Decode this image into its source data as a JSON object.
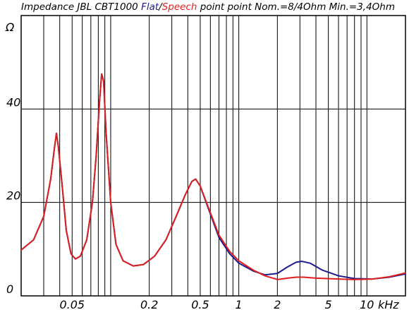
{
  "chart_data": {
    "type": "line",
    "title_parts": [
      {
        "text": "Impedance JBL CBT1000 ",
        "color": "#000000"
      },
      {
        "text": "Flat",
        "color": "#1c1c8c"
      },
      {
        "text": "/",
        "color": "#000000"
      },
      {
        "text": "Speech",
        "color": "#e01e1e"
      },
      {
        "text": " point point Nom.=8/4Ohm Min.=3,4Ohm",
        "color": "#000000"
      }
    ],
    "ylabel": "Ω",
    "xunit": "kHz",
    "x_scale": "log",
    "xlim": [
      0.02,
      20
    ],
    "ylim": [
      0,
      60
    ],
    "grid": true,
    "y_ticks": [
      {
        "value": 0,
        "label": "0"
      },
      {
        "value": 20,
        "label": "20"
      },
      {
        "value": 40,
        "label": "40"
      }
    ],
    "x_ticks": [
      {
        "value": 0.05,
        "label": "0.05"
      },
      {
        "value": 0.2,
        "label": "0.2"
      },
      {
        "value": 0.5,
        "label": "0.5"
      },
      {
        "value": 1,
        "label": "1"
      },
      {
        "value": 2,
        "label": "2"
      },
      {
        "value": 5,
        "label": "5"
      },
      {
        "value": 10,
        "label": "10"
      }
    ],
    "series": [
      {
        "name": "Flat",
        "color": "#1c1c8c",
        "points": [
          [
            0.02,
            9.8
          ],
          [
            0.025,
            12.0
          ],
          [
            0.03,
            17.0
          ],
          [
            0.034,
            25.0
          ],
          [
            0.0365,
            32.0
          ],
          [
            0.0377,
            34.8
          ],
          [
            0.039,
            32.0
          ],
          [
            0.042,
            23.0
          ],
          [
            0.045,
            14.0
          ],
          [
            0.049,
            9.0
          ],
          [
            0.053,
            7.9
          ],
          [
            0.058,
            8.5
          ],
          [
            0.065,
            12.0
          ],
          [
            0.072,
            20.0
          ],
          [
            0.077,
            30.0
          ],
          [
            0.082,
            42.0
          ],
          [
            0.085,
            47.5
          ],
          [
            0.088,
            46.0
          ],
          [
            0.092,
            35.0
          ],
          [
            0.1,
            20.0
          ],
          [
            0.11,
            11.0
          ],
          [
            0.125,
            7.5
          ],
          [
            0.15,
            6.4
          ],
          [
            0.18,
            6.7
          ],
          [
            0.22,
            8.5
          ],
          [
            0.27,
            12.0
          ],
          [
            0.33,
            17.5
          ],
          [
            0.38,
            21.5
          ],
          [
            0.43,
            24.5
          ],
          [
            0.46,
            25.0
          ],
          [
            0.5,
            23.5
          ],
          [
            0.6,
            17.5
          ],
          [
            0.7,
            12.5
          ],
          [
            0.85,
            9.0
          ],
          [
            1.0,
            7.0
          ],
          [
            1.3,
            5.3
          ],
          [
            1.6,
            4.5
          ],
          [
            2.0,
            4.8
          ],
          [
            2.4,
            6.2
          ],
          [
            2.8,
            7.2
          ],
          [
            3.1,
            7.4
          ],
          [
            3.6,
            7.0
          ],
          [
            4.5,
            5.5
          ],
          [
            6.0,
            4.3
          ],
          [
            8.0,
            3.7
          ],
          [
            11.0,
            3.6
          ],
          [
            15.0,
            4.0
          ],
          [
            20.0,
            4.7
          ]
        ]
      },
      {
        "name": "Speech",
        "color": "#e01e1e",
        "points": [
          [
            0.02,
            9.8
          ],
          [
            0.025,
            12.0
          ],
          [
            0.03,
            17.0
          ],
          [
            0.034,
            25.0
          ],
          [
            0.0365,
            32.0
          ],
          [
            0.0377,
            34.8
          ],
          [
            0.039,
            32.0
          ],
          [
            0.042,
            23.0
          ],
          [
            0.045,
            14.0
          ],
          [
            0.049,
            9.0
          ],
          [
            0.053,
            7.9
          ],
          [
            0.058,
            8.5
          ],
          [
            0.065,
            12.0
          ],
          [
            0.072,
            20.0
          ],
          [
            0.077,
            30.0
          ],
          [
            0.082,
            42.0
          ],
          [
            0.085,
            47.5
          ],
          [
            0.088,
            46.0
          ],
          [
            0.092,
            35.0
          ],
          [
            0.1,
            20.0
          ],
          [
            0.11,
            11.0
          ],
          [
            0.125,
            7.5
          ],
          [
            0.15,
            6.4
          ],
          [
            0.18,
            6.7
          ],
          [
            0.22,
            8.5
          ],
          [
            0.27,
            12.0
          ],
          [
            0.33,
            17.5
          ],
          [
            0.38,
            21.5
          ],
          [
            0.43,
            24.5
          ],
          [
            0.46,
            25.0
          ],
          [
            0.5,
            23.5
          ],
          [
            0.6,
            17.8
          ],
          [
            0.7,
            13.0
          ],
          [
            0.85,
            9.5
          ],
          [
            1.0,
            7.5
          ],
          [
            1.3,
            5.5
          ],
          [
            1.6,
            4.3
          ],
          [
            2.0,
            3.5
          ],
          [
            2.4,
            3.8
          ],
          [
            2.8,
            4.0
          ],
          [
            3.2,
            4.0
          ],
          [
            4.0,
            3.8
          ],
          [
            6.0,
            3.6
          ],
          [
            8.0,
            3.5
          ],
          [
            11.0,
            3.6
          ],
          [
            15.0,
            4.1
          ],
          [
            20.0,
            4.9
          ]
        ]
      }
    ]
  }
}
